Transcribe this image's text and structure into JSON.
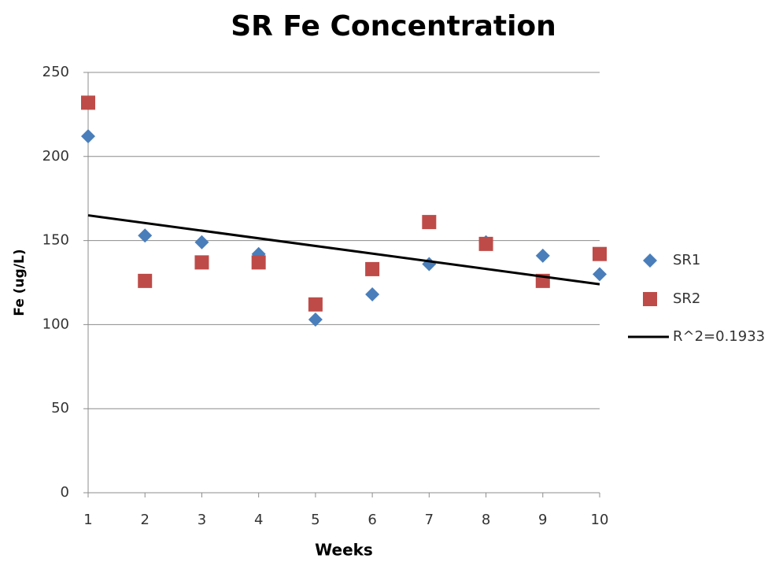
{
  "chart_data": {
    "type": "scatter",
    "title": "SR Fe Concentration",
    "x_label": "Weeks",
    "y_label": "Fe (ug/L)",
    "x": [
      1,
      2,
      3,
      4,
      5,
      6,
      7,
      8,
      9,
      10
    ],
    "series": [
      {
        "name": "SR1",
        "color": "#4a7ebb",
        "marker": "diamond",
        "values": [
          212,
          153,
          149,
          142,
          103,
          118,
          136,
          149,
          141,
          130
        ]
      },
      {
        "name": "SR2",
        "color": "#be4b48",
        "marker": "square",
        "values": [
          232,
          126,
          137,
          137,
          112,
          133,
          161,
          148,
          126,
          142
        ]
      }
    ],
    "trendline": {
      "name": "R^2=0.1933",
      "color": "#000000",
      "x": [
        1,
        10
      ],
      "values": [
        165,
        124
      ]
    },
    "xlim": [
      1,
      10
    ],
    "xticks": [
      1,
      2,
      3,
      4,
      5,
      6,
      7,
      8,
      9,
      10
    ],
    "ylim": [
      0,
      250
    ],
    "yticks": [
      0,
      50,
      100,
      150,
      200,
      250
    ],
    "grid": true,
    "legend": "right"
  }
}
